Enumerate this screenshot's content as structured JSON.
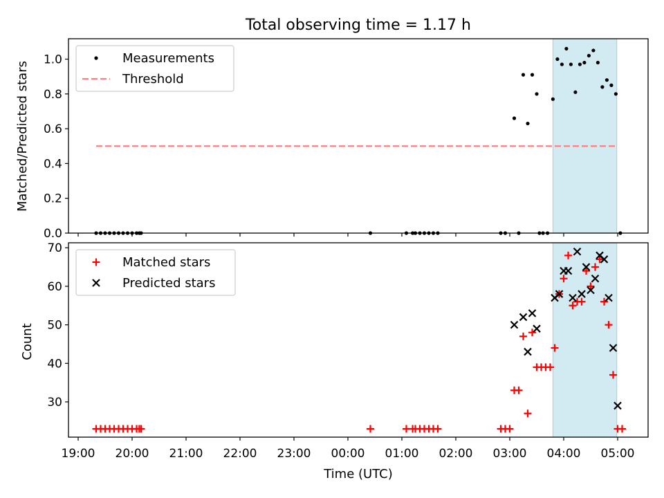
{
  "chart_data": [
    {
      "type": "scatter",
      "title": "Total observing time = 1.17 h",
      "ylabel": "Matched/Predicted stars",
      "xlabel": "",
      "ylim": [
        0,
        1.1
      ],
      "yticks": [
        "0.0",
        "0.2",
        "0.4",
        "0.6",
        "0.8",
        "1.0"
      ],
      "highlight_span": [
        "03:48",
        "04:59"
      ],
      "highlight_color": "#add8e6",
      "legend": {
        "placement": "upper-left",
        "entries": [
          "Measurements",
          "Threshold"
        ]
      },
      "threshold": {
        "name": "Threshold",
        "value": 0.5,
        "x_range": [
          "19:20",
          "05:00"
        ],
        "color": "#ff7f7f",
        "style": "dashed"
      },
      "series": [
        {
          "name": "Measurements",
          "color": "#000000",
          "marker": "dot",
          "points": [
            [
              "19:20",
              0
            ],
            [
              "19:25",
              0
            ],
            [
              "19:30",
              0
            ],
            [
              "19:35",
              0
            ],
            [
              "19:40",
              0
            ],
            [
              "19:45",
              0
            ],
            [
              "19:50",
              0
            ],
            [
              "19:55",
              0
            ],
            [
              "20:00",
              0
            ],
            [
              "20:05",
              0
            ],
            [
              "20:08",
              0
            ],
            [
              "20:10",
              0
            ],
            [
              "00:25",
              0
            ],
            [
              "01:05",
              0
            ],
            [
              "01:12",
              0
            ],
            [
              "01:15",
              0
            ],
            [
              "01:20",
              0
            ],
            [
              "01:25",
              0
            ],
            [
              "01:30",
              0
            ],
            [
              "01:35",
              0
            ],
            [
              "01:40",
              0
            ],
            [
              "02:50",
              0
            ],
            [
              "02:55",
              0
            ],
            [
              "03:05",
              0.66
            ],
            [
              "03:10",
              0
            ],
            [
              "03:15",
              0.91
            ],
            [
              "03:20",
              0.63
            ],
            [
              "03:25",
              0.91
            ],
            [
              "03:30",
              0.8
            ],
            [
              "03:33",
              0
            ],
            [
              "03:37",
              0
            ],
            [
              "03:42",
              0
            ],
            [
              "03:48",
              0.77
            ],
            [
              "03:53",
              1.0
            ],
            [
              "03:58",
              0.97
            ],
            [
              "04:03",
              1.06
            ],
            [
              "04:08",
              0.97
            ],
            [
              "04:13",
              0.81
            ],
            [
              "04:18",
              0.97
            ],
            [
              "04:23",
              0.98
            ],
            [
              "04:28",
              1.02
            ],
            [
              "04:33",
              1.05
            ],
            [
              "04:38",
              0.98
            ],
            [
              "04:43",
              0.84
            ],
            [
              "04:48",
              0.88
            ],
            [
              "04:53",
              0.85
            ],
            [
              "04:58",
              0.8
            ],
            [
              "05:03",
              0
            ]
          ]
        }
      ]
    },
    {
      "type": "scatter",
      "title": "",
      "ylabel": "Count",
      "xlabel": "Time (UTC)",
      "ylim": [
        21,
        71
      ],
      "yticks": [
        "30",
        "40",
        "50",
        "60",
        "70"
      ],
      "xticks": [
        "19:00",
        "20:00",
        "21:00",
        "22:00",
        "23:00",
        "00:00",
        "01:00",
        "02:00",
        "03:00",
        "04:00",
        "05:00"
      ],
      "highlight_span": [
        "03:48",
        "04:59"
      ],
      "highlight_color": "#add8e6",
      "legend": {
        "placement": "upper-left",
        "entries": [
          "Matched stars",
          "Predicted stars"
        ]
      },
      "series": [
        {
          "name": "Matched stars",
          "color": "#ff0000",
          "marker": "plus",
          "points": [
            [
              "19:20",
              23
            ],
            [
              "19:25",
              23
            ],
            [
              "19:30",
              23
            ],
            [
              "19:35",
              23
            ],
            [
              "19:40",
              23
            ],
            [
              "19:45",
              23
            ],
            [
              "19:50",
              23
            ],
            [
              "19:55",
              23
            ],
            [
              "20:00",
              23
            ],
            [
              "20:05",
              23
            ],
            [
              "20:08",
              23
            ],
            [
              "20:10",
              23
            ],
            [
              "00:25",
              23
            ],
            [
              "01:05",
              23
            ],
            [
              "01:12",
              23
            ],
            [
              "01:15",
              23
            ],
            [
              "01:20",
              23
            ],
            [
              "01:25",
              23
            ],
            [
              "01:30",
              23
            ],
            [
              "01:35",
              23
            ],
            [
              "01:40",
              23
            ],
            [
              "02:50",
              23
            ],
            [
              "02:55",
              23
            ],
            [
              "03:00",
              23
            ],
            [
              "03:05",
              33
            ],
            [
              "03:10",
              33
            ],
            [
              "03:15",
              47
            ],
            [
              "03:20",
              27
            ],
            [
              "03:25",
              48
            ],
            [
              "03:30",
              39
            ],
            [
              "03:35",
              39
            ],
            [
              "03:40",
              39
            ],
            [
              "03:45",
              39
            ],
            [
              "03:50",
              44
            ],
            [
              "03:55",
              58
            ],
            [
              "04:00",
              62
            ],
            [
              "04:05",
              68
            ],
            [
              "04:10",
              55
            ],
            [
              "04:15",
              56
            ],
            [
              "04:20",
              56
            ],
            [
              "04:25",
              64
            ],
            [
              "04:30",
              60
            ],
            [
              "04:35",
              65
            ],
            [
              "04:40",
              67
            ],
            [
              "04:45",
              56
            ],
            [
              "04:50",
              50
            ],
            [
              "04:55",
              37
            ],
            [
              "05:00",
              23
            ],
            [
              "05:05",
              23
            ]
          ]
        },
        {
          "name": "Predicted stars",
          "color": "#000000",
          "marker": "x",
          "points": [
            [
              "03:05",
              50
            ],
            [
              "03:15",
              52
            ],
            [
              "03:20",
              43
            ],
            [
              "03:25",
              53
            ],
            [
              "03:30",
              49
            ],
            [
              "03:50",
              57
            ],
            [
              "03:55",
              58
            ],
            [
              "04:00",
              64
            ],
            [
              "04:05",
              64
            ],
            [
              "04:10",
              57
            ],
            [
              "04:15",
              69
            ],
            [
              "04:20",
              58
            ],
            [
              "04:25",
              65
            ],
            [
              "04:30",
              59
            ],
            [
              "04:35",
              62
            ],
            [
              "04:40",
              68
            ],
            [
              "04:45",
              67
            ],
            [
              "04:50",
              57
            ],
            [
              "04:55",
              44
            ],
            [
              "05:00",
              29
            ]
          ]
        }
      ]
    }
  ]
}
